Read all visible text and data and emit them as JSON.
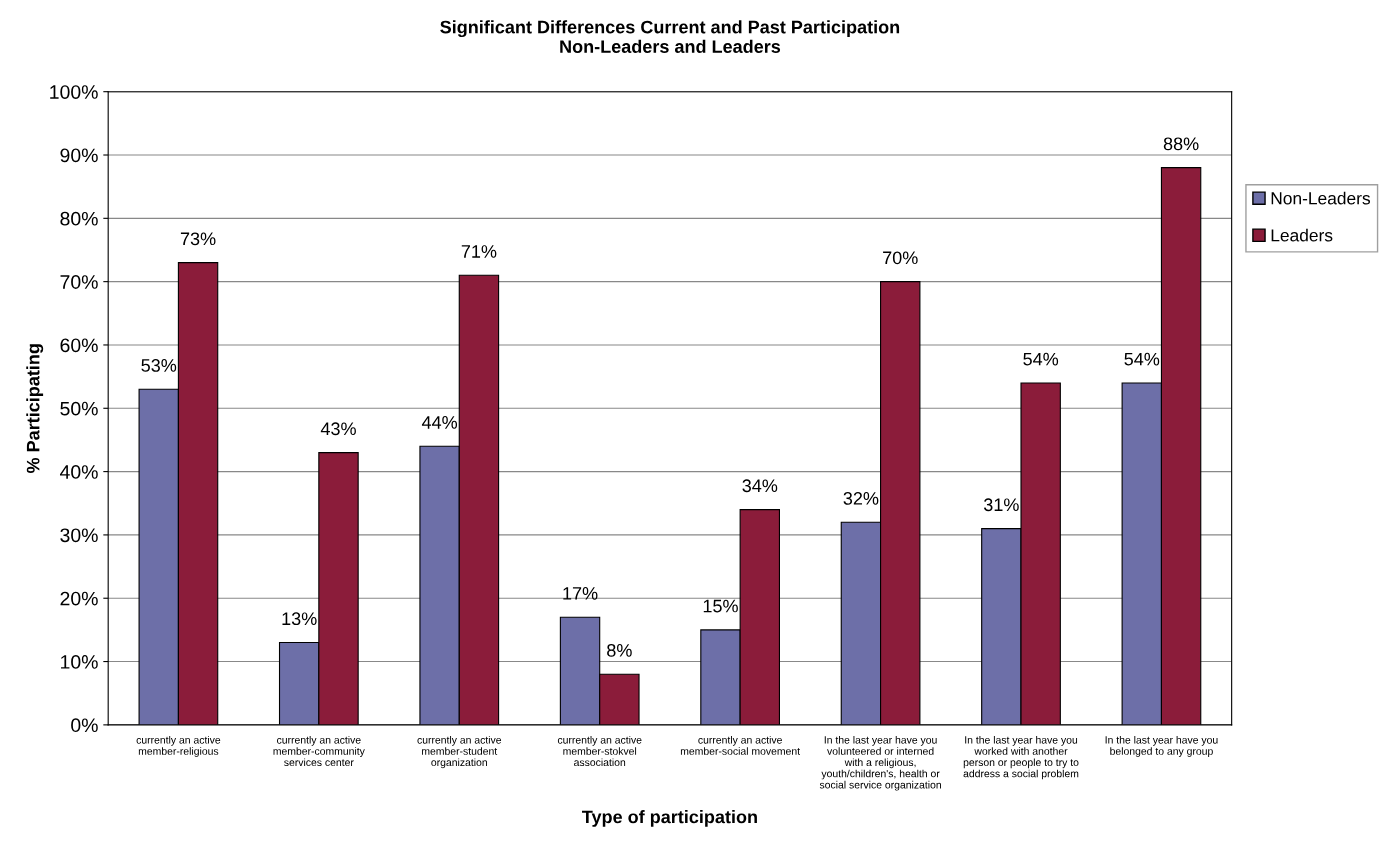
{
  "chart_data": {
    "type": "bar",
    "title": "Significant Differences Current and Past Participation\nNon-Leaders and Leaders",
    "xlabel": "Type of participation",
    "ylabel": "% Participating",
    "categories": [
      "currently an active\nmember-religious",
      "currently an active\nmember-community\nservices center",
      "currently an active\nmember-student\norganization",
      "currently an active\nmember-stokvel\nassociation",
      "currently an active\nmember-social movement",
      "In the last year have you\nvolunteered or interned\nwith a religious,\nyouth/children's, health or\nsocial service organization",
      "In the last year have you\nworked with another\nperson or people to try to\naddress a social problem",
      "In the last year have you\nbelonged to any group"
    ],
    "series": [
      {
        "name": "Non-Leaders",
        "color": "#6d6fa8",
        "values": [
          53,
          13,
          44,
          17,
          15,
          32,
          31,
          54
        ],
        "value_labels": [
          "53%",
          "13%",
          "44%",
          "17%",
          "15%",
          "32%",
          "31%",
          "54%"
        ]
      },
      {
        "name": "Leaders",
        "color": "#8b1c3a",
        "values": [
          73,
          43,
          71,
          8,
          34,
          70,
          54,
          88
        ],
        "value_labels": [
          "73%",
          "43%",
          "71%",
          "8%",
          "34%",
          "70%",
          "54%",
          "88%"
        ]
      }
    ],
    "ylim": [
      0,
      100
    ],
    "yticks": [
      {
        "value": 0,
        "label": "0%"
      },
      {
        "value": 10,
        "label": "10%"
      },
      {
        "value": 20,
        "label": "20%"
      },
      {
        "value": 30,
        "label": "30%"
      },
      {
        "value": 40,
        "label": "40%"
      },
      {
        "value": 50,
        "label": "50%"
      },
      {
        "value": 60,
        "label": "60%"
      },
      {
        "value": 70,
        "label": "70%"
      },
      {
        "value": 80,
        "label": "80%"
      },
      {
        "value": 90,
        "label": "90%"
      },
      {
        "value": 100,
        "label": "100%"
      }
    ],
    "grid": "y",
    "legend": "right"
  }
}
